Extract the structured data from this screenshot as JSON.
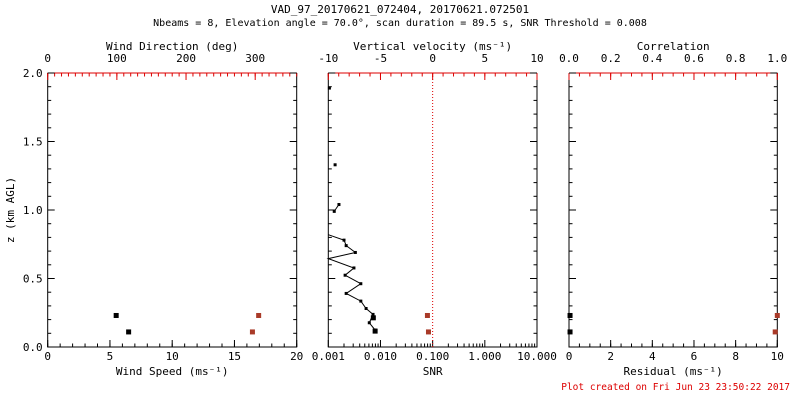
{
  "header": {
    "title": "VAD_97_20170621_072404, 20170621.072501",
    "subtitle": "Nbeams = 8, Elevation angle = 70.0°, scan duration = 89.5 s, SNR Threshold = 0.008"
  },
  "footer": {
    "created": "Plot created on Fri Jun 23 23:50:22 2017"
  },
  "colors": {
    "axis_black": "#000000",
    "axis_red": "#dd0000",
    "marker_red": "#a93a28"
  },
  "chart_data": {
    "type": "scatter",
    "y_shared_label": "z (km AGL)",
    "panels": [
      {
        "name": "wind",
        "bottom_axis": {
          "label": "Wind Speed (ms⁻¹)",
          "scale": "linear",
          "range": [
            0,
            20
          ],
          "tick_values": [
            0,
            5,
            10,
            15,
            20
          ],
          "tick_labels": [
            "0",
            "5",
            "10",
            "15",
            "20"
          ],
          "minor_step": 1,
          "color": "axis_black"
        },
        "top_axis": {
          "label": "Wind Direction (deg)",
          "scale": "linear",
          "range": [
            0,
            360
          ],
          "tick_values": [
            0,
            100,
            200,
            300
          ],
          "tick_labels": [
            "0",
            "100",
            "200",
            "300"
          ],
          "minor_step": 10,
          "color": "axis_red"
        },
        "y_axis": {
          "label": "z (km AGL)",
          "range": [
            0,
            2
          ],
          "tick_values": [
            0,
            0.5,
            1,
            1.5,
            2
          ],
          "tick_labels": [
            "0.0",
            "0.5",
            "1.0",
            "1.5",
            "2.0"
          ],
          "minor_step": 0.1,
          "show_labels": true
        },
        "series": [
          {
            "name": "wind-speed",
            "axis": "bottom",
            "color": "axis_black",
            "marker": 5,
            "points": [
              [
                5.5,
                0.23
              ],
              [
                6.5,
                0.11
              ]
            ]
          },
          {
            "name": "wind-direction",
            "axis": "top",
            "color": "marker_red",
            "marker": 5,
            "points": [
              [
                305,
                0.23
              ],
              [
                296,
                0.11
              ]
            ]
          }
        ]
      },
      {
        "name": "snr",
        "bottom_axis": {
          "label": "SNR",
          "scale": "log",
          "range": [
            0.001,
            10
          ],
          "tick_values": [
            0.001,
            0.01,
            0.1,
            1,
            10
          ],
          "tick_labels": [
            "0.001",
            "0.010",
            "0.100",
            "1.000",
            "10.000"
          ],
          "color": "axis_black"
        },
        "top_axis": {
          "label": "Vertical velocity (ms⁻¹)",
          "scale": "linear",
          "range": [
            -10,
            10
          ],
          "tick_values": [
            -10,
            -5,
            0,
            5,
            10
          ],
          "tick_labels": [
            "-10",
            "-5",
            "0",
            "5",
            "10"
          ],
          "minor_step": 1,
          "color": "axis_red"
        },
        "y_axis": {
          "label": "",
          "range": [
            0,
            2
          ],
          "tick_values": [
            0,
            0.5,
            1,
            1.5,
            2
          ],
          "tick_labels": [],
          "minor_step": 0.1,
          "show_labels": false
        },
        "refline": {
          "axis": "top",
          "value": 0,
          "style": "dotted",
          "color": "axis_red"
        },
        "series": [
          {
            "name": "snr-profile",
            "axis": "bottom",
            "color": "axis_black",
            "marker": 3,
            "points": [
              [
                0.00105,
                1.89
              ],
              [
                0.00135,
                1.33
              ],
              [
                0.0016,
                1.04
              ],
              [
                0.0013,
                0.99
              ],
              [
                0.002,
                0.78
              ],
              [
                0.0022,
                0.74
              ],
              [
                0.0033,
                0.69
              ],
              [
                0.0031,
                0.577
              ],
              [
                0.0021,
                0.524
              ],
              [
                0.0042,
                0.462
              ],
              [
                0.0022,
                0.391
              ],
              [
                0.0042,
                0.335
              ],
              [
                0.0053,
                0.281
              ],
              [
                0.0072,
                0.238
              ],
              [
                0.0061,
                0.177
              ],
              [
                0.0079,
                0.124
              ]
            ],
            "lines": [
              [
                [
                  0.0016,
                  1.04
                ],
                [
                  0.0013,
                  0.99
                ]
              ],
              [
                [
                  0.001,
                  0.82
                ],
                [
                  0.002,
                  0.78
                ],
                [
                  0.0022,
                  0.74
                ],
                [
                  0.0033,
                  0.69
                ],
                [
                  0.001,
                  0.645
                ],
                [
                  0.0031,
                  0.577
                ],
                [
                  0.0021,
                  0.524
                ],
                [
                  0.0042,
                  0.462
                ],
                [
                  0.0022,
                  0.391
                ],
                [
                  0.0042,
                  0.335
                ],
                [
                  0.0053,
                  0.281
                ],
                [
                  0.0072,
                  0.238
                ],
                [
                  0.0061,
                  0.177
                ],
                [
                  0.0079,
                  0.124
                ]
              ]
            ]
          },
          {
            "name": "snr-selected-gates",
            "axis": "bottom",
            "color": "axis_black",
            "marker": 5,
            "points": [
              [
                0.0073,
                0.213
              ],
              [
                0.0079,
                0.116
              ]
            ]
          },
          {
            "name": "vertical-velocity",
            "axis": "top",
            "color": "marker_red",
            "marker": 5,
            "points": [
              [
                -0.5,
                0.23
              ],
              [
                -0.4,
                0.11
              ]
            ]
          }
        ]
      },
      {
        "name": "residual",
        "bottom_axis": {
          "label": "Residual (ms⁻¹)",
          "scale": "linear",
          "range": [
            0,
            10
          ],
          "tick_values": [
            0,
            2,
            4,
            6,
            8,
            10
          ],
          "tick_labels": [
            "0",
            "2",
            "4",
            "6",
            "8",
            "10"
          ],
          "minor_step": 0.5,
          "color": "axis_black"
        },
        "top_axis": {
          "label": "Correlation",
          "scale": "linear",
          "range": [
            0,
            1
          ],
          "tick_values": [
            0,
            0.2,
            0.4,
            0.6,
            0.8,
            1.0
          ],
          "tick_labels": [
            "0.0",
            "0.2",
            "0.4",
            "0.6",
            "0.8",
            "1.0"
          ],
          "minor_step": 0.05,
          "color": "axis_red"
        },
        "y_axis": {
          "label": "",
          "range": [
            0,
            2
          ],
          "tick_values": [
            0,
            0.5,
            1,
            1.5,
            2
          ],
          "tick_labels": [],
          "minor_step": 0.1,
          "show_labels": false
        },
        "series": [
          {
            "name": "residual",
            "axis": "bottom",
            "color": "axis_black",
            "marker": 5,
            "points": [
              [
                0.05,
                0.23
              ],
              [
                0.05,
                0.11
              ]
            ]
          },
          {
            "name": "correlation",
            "axis": "top",
            "color": "marker_red",
            "marker": 5,
            "points": [
              [
                1.0,
                0.23
              ],
              [
                0.99,
                0.11
              ]
            ]
          }
        ]
      }
    ]
  }
}
